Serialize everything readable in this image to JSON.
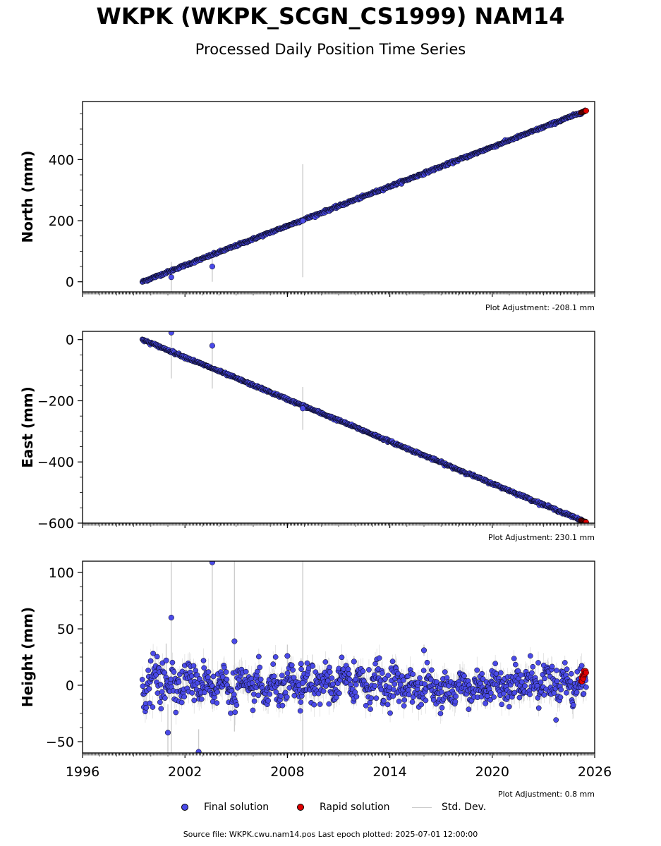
{
  "header": {
    "title": "WKPK (WKPK_SCGN_CS1999) NAM14",
    "subtitle": "Processed Daily Position Time Series"
  },
  "colors": {
    "final": "#4a4ae8",
    "rapid": "#e00000",
    "std_dev": "#cccccc",
    "edge": "#000000"
  },
  "legend": {
    "final_label": "Final solution",
    "rapid_label": "Rapid solution",
    "std_label": "Std. Dev."
  },
  "footer": {
    "source": "Source file: WKPK.cwu.nam14.pos  Last epoch plotted: 2025-07-01 12:00:00"
  },
  "chart_data": [
    {
      "type": "scatter",
      "ylabel": "North (mm)",
      "adjustment": "Plot Adjustment: -208.1 mm",
      "xlim": [
        1996,
        2026
      ],
      "ylim": [
        -33,
        590
      ],
      "yticks": [
        0,
        200,
        400
      ],
      "trend": {
        "x": [
          1999.5,
          2025.5
        ],
        "y": [
          0,
          560
        ]
      },
      "noise_mm": 2,
      "outliers": [
        {
          "x": 2001.2,
          "y": 15,
          "err": 50
        },
        {
          "x": 2003.6,
          "y": 50,
          "err": 50
        },
        {
          "x": 2008.9,
          "y": 200,
          "err": 185
        }
      ],
      "rapid": {
        "x": [
          2025.2,
          2025.5
        ],
        "y": [
          554,
          560
        ]
      }
    },
    {
      "type": "scatter",
      "ylabel": "East (mm)",
      "adjustment": "Plot Adjustment: 230.1 mm",
      "xlim": [
        1996,
        2026
      ],
      "ylim": [
        -600,
        27
      ],
      "yticks": [
        0,
        -200,
        -400,
        -600
      ],
      "trend": {
        "x": [
          1999.5,
          2025.5
        ],
        "y": [
          0,
          -597
        ]
      },
      "noise_mm": 2,
      "outliers": [
        {
          "x": 2001.2,
          "y": 23,
          "err": 150
        },
        {
          "x": 2003.6,
          "y": -20,
          "err": 140
        },
        {
          "x": 2008.9,
          "y": -225,
          "err": 70
        }
      ],
      "rapid": {
        "x": [
          2025.2,
          2025.5
        ],
        "y": [
          -591,
          -597
        ]
      }
    },
    {
      "type": "scatter",
      "ylabel": "Height (mm)",
      "adjustment": "Plot Adjustment: 0.8 mm",
      "xlim": [
        1996,
        2026
      ],
      "ylim": [
        -60,
        110
      ],
      "yticks": [
        -50,
        0,
        50,
        100
      ],
      "xticks": [
        1996,
        2002,
        2008,
        2014,
        2020,
        2026
      ],
      "trend": {
        "x": [
          1999.5,
          2025.5
        ],
        "y": [
          0,
          0
        ]
      },
      "noise_mm": 8,
      "outliers": [
        {
          "x": 2000.9,
          "y": 22,
          "err": 15
        },
        {
          "x": 2001.0,
          "y": -42,
          "err": 25
        },
        {
          "x": 2001.2,
          "y": 60,
          "err": 120
        },
        {
          "x": 2002.8,
          "y": -59,
          "err": 20
        },
        {
          "x": 2003.6,
          "y": 109,
          "err": 130
        },
        {
          "x": 2004.9,
          "y": 39,
          "err": 80
        },
        {
          "x": 2008.0,
          "y": 26,
          "err": 10
        },
        {
          "x": 2008.8,
          "y": 19,
          "err": 5
        },
        {
          "x": 2008.9,
          "y": 2,
          "err": 120
        },
        {
          "x": 2011.9,
          "y": 21,
          "err": 5
        },
        {
          "x": 2016.0,
          "y": 31,
          "err": 5
        },
        {
          "x": 2019.6,
          "y": -16,
          "err": 5
        }
      ],
      "rapid": {
        "x": [
          2025.2,
          2025.5
        ],
        "y": [
          4,
          13
        ]
      }
    }
  ]
}
